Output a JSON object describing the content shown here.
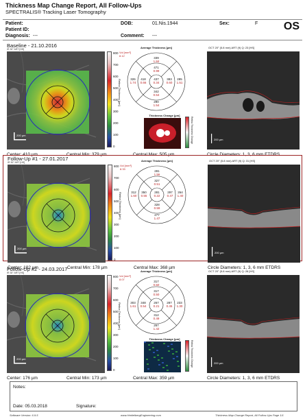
{
  "header": {
    "title": "Thickness Map Change Report, All Follow-Ups",
    "subtitle": "SPECTRALIS® Tracking Laser Tomography",
    "eye": "OS",
    "patient_label": "Patient:",
    "patient_id_label": "Patient ID:",
    "diagnosis_label": "Diagnosis:",
    "diagnosis_value": "---",
    "dob_label": "DOB:",
    "dob_value": "01.Nis.1944",
    "sex_label": "Sex:",
    "sex_value": "F",
    "comment_label": "Comment:",
    "comment_value": "---"
  },
  "colorbar_ticks": [
    "800",
    "700",
    "600",
    "500",
    "400",
    "300",
    "200",
    "100",
    "0"
  ],
  "colorbar_axis": "Retina Thickness [µm]",
  "change_axis": "Retina Thickness Change",
  "grid_header": "Average Thickness [µm]",
  "change_header": "Thickness Change [µm]",
  "vol_label": "Vol [mm³]",
  "scale_label": "200 µm",
  "sections": [
    {
      "title": "Baseline - 21.10.2016",
      "sub": "IR 30° ART [HS]",
      "oct_header": "OCT 20° (5.8 mm) ART (9) Q: 23 [HS]",
      "volume": "8.12",
      "center_thickness": "Center: 410 µm",
      "central_min": "Central Min: 379 µm",
      "central_max": "Central Max: 505 µm",
      "circles": "Circle Diameters:  1, 3, 6 mm ETDRS",
      "grid": {
        "outer_top": [
          "339",
          "1.84"
        ],
        "inner_top": [
          "471",
          "0.99"
        ],
        "outer_left": [
          "326",
          "1.74"
        ],
        "inner_left": [
          "418",
          "0.66"
        ],
        "center": [
          "437",
          "0.34"
        ],
        "inner_right": [
          "383",
          "0.60"
        ],
        "outer_right": [
          "285",
          "1.51"
        ],
        "inner_bottom": [
          "342",
          "0.54"
        ],
        "outer_bottom": [
          "290",
          "1.54"
        ]
      },
      "has_change_map": true,
      "change_style": "red"
    },
    {
      "title": "Follow-Up #1 - 27.01.2017",
      "sub": "IR 30° ART [HS]",
      "oct_header": "OCT 20° (5.8 mm) ART (9) Q: 31 [HS]",
      "volume": "8.33",
      "center_thickness": "Center: 182 µm",
      "central_min": "Central Min: 178 µm",
      "central_max": "Central Max: 368 µm",
      "circles": "Circle Diameters:  1, 3, 6 mm ETDRS",
      "grid": {
        "outer_top": [
          "281",
          "1.56"
        ],
        "inner_top": [
          "327",
          "0.51"
        ],
        "outer_left": [
          "312",
          "1.60"
        ],
        "inner_left": [
          "350",
          "0.55"
        ],
        "center": [
          "281",
          "0.22"
        ],
        "inner_right": [
          "297",
          "0.47"
        ],
        "outer_right": [
          "264",
          "1.40"
        ],
        "inner_bottom": [
          "328",
          "0.59"
        ],
        "outer_bottom": [
          "277",
          "1.47"
        ]
      },
      "has_change_map": false,
      "change_style": "none"
    },
    {
      "title": "Follow-Up #2 - 24.03.2017",
      "sub": "IR 30° ART [HS]",
      "oct_header": "OCT 20° (5.8 mm) ART (9) Q: 28 [HS]",
      "volume": "8.07",
      "center_thickness": "Center: 176 µm",
      "central_min": "Central Min: 173 µm",
      "central_max": "Central Max: 359 µm",
      "circles": "Circle Diameters:  1, 3, 6 mm ETDRS",
      "grid": {
        "outer_top": [
          "317",
          "0.50"
        ],
        "inner_top": [
          "317",
          "0.50"
        ],
        "outer_left": [
          "303",
          "1.61"
        ],
        "inner_left": [
          "348",
          "0.54"
        ],
        "center": [
          "267",
          "0.21"
        ],
        "inner_right": [
          "287",
          "0.45"
        ],
        "outer_right": [
          "233",
          "1.30"
        ],
        "inner_bottom": [
          "312",
          "0.49"
        ],
        "outer_bottom": [
          "267",
          "1.42"
        ]
      },
      "has_change_map": true,
      "change_style": "blue"
    }
  ],
  "notes": {
    "notes_label": "Notes:",
    "date_label": "Date: 05.03.2018",
    "signature_label": "Signature:"
  },
  "footer": {
    "software": "Software Version: 6.9.5",
    "website": "www.HeidelbergEngineering.com",
    "report": "Thickness Map Change Report, All Follow-Ups   Page 1/1"
  }
}
